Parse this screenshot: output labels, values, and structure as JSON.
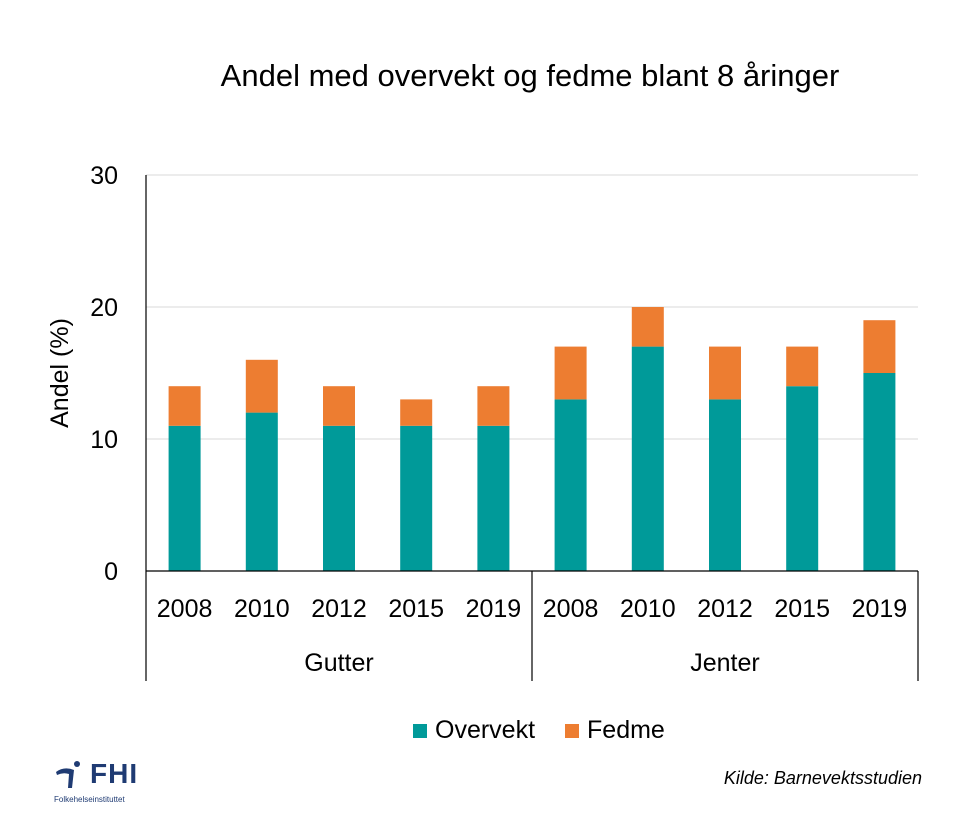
{
  "chart_data": {
    "type": "bar",
    "stacked": true,
    "title": "Andel med overvekt og fedme blant 8 åringer",
    "ylabel": "Andel (%)",
    "xlabel": "",
    "ylim": [
      0,
      30
    ],
    "yticks": [
      0,
      10,
      20,
      30
    ],
    "grid": true,
    "legend_position": "bottom",
    "categories": [
      "2008",
      "2010",
      "2012",
      "2015",
      "2019",
      "2008",
      "2010",
      "2012",
      "2015",
      "2019"
    ],
    "groups": [
      {
        "label": "Gutter",
        "count": 5
      },
      {
        "label": "Jenter",
        "count": 5
      }
    ],
    "series": [
      {
        "name": "Overvekt",
        "color": "#009a99",
        "values": [
          11,
          12,
          11,
          11,
          11,
          13,
          17,
          13,
          14,
          15
        ]
      },
      {
        "name": "Fedme",
        "color": "#ed7d31",
        "values": [
          3,
          4,
          3,
          2,
          3,
          4,
          3,
          4,
          3,
          4
        ]
      }
    ]
  },
  "source_note": "Kilde: Barnevektsstudien",
  "logo": {
    "text": "FHI",
    "subtext": "Folkehelseinstituttet",
    "color": "#1f3b73"
  }
}
